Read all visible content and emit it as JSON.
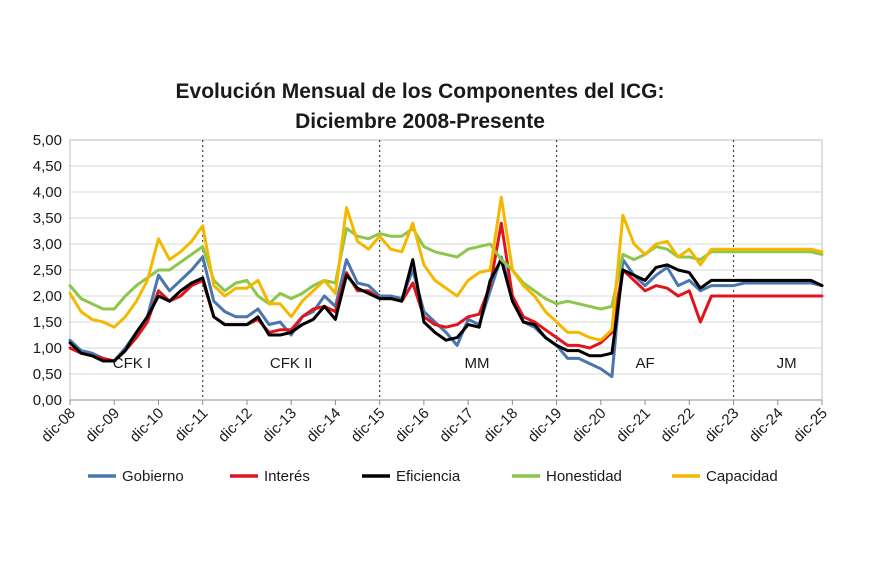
{
  "chart_data": {
    "type": "line",
    "title": "Evolución Mensual de los Componentes del ICG:",
    "subtitle": "Diciembre 2008-Presente",
    "xlabel": "",
    "ylabel": "",
    "ylim": [
      0,
      5
    ],
    "yticks": [
      "0,00",
      "0,50",
      "1,00",
      "1,50",
      "2,00",
      "2,50",
      "3,00",
      "3,50",
      "4,00",
      "4,50",
      "5,00"
    ],
    "categories": [
      "dic-08",
      "dic-09",
      "dic-10",
      "dic-11",
      "dic-12",
      "dic-13",
      "dic-14",
      "dic-15",
      "dic-16",
      "dic-17",
      "dic-18",
      "dic-19",
      "dic-20",
      "dic-21",
      "dic-22",
      "dic-23",
      "dic-24",
      "dic-25"
    ],
    "x_unit": "years since dic-08 (sampled quarterly)",
    "x": [
      0,
      0.25,
      0.5,
      0.75,
      1,
      1.25,
      1.5,
      1.75,
      2,
      2.25,
      2.5,
      2.75,
      3,
      3.25,
      3.5,
      3.75,
      4,
      4.25,
      4.5,
      4.75,
      5,
      5.25,
      5.5,
      5.75,
      6,
      6.25,
      6.5,
      6.75,
      7,
      7.25,
      7.5,
      7.75,
      8,
      8.25,
      8.5,
      8.75,
      9,
      9.25,
      9.5,
      9.75,
      10,
      10.25,
      10.5,
      10.75,
      11,
      11.25,
      11.5,
      11.75,
      12,
      12.25,
      12.5,
      12.75,
      13,
      13.25,
      13.5,
      13.75,
      14,
      14.25,
      14.5,
      14.75,
      15,
      15.25,
      15.5,
      15.75,
      16,
      16.25,
      16.5,
      16.75,
      17
    ],
    "series": [
      {
        "name": "Gobierno",
        "color": "#4a76b0",
        "values": [
          1.15,
          0.95,
          0.9,
          0.8,
          0.75,
          1.0,
          1.3,
          1.6,
          2.4,
          2.1,
          2.3,
          2.5,
          2.75,
          1.9,
          1.7,
          1.6,
          1.6,
          1.75,
          1.45,
          1.5,
          1.25,
          1.6,
          1.7,
          2.0,
          1.8,
          2.7,
          2.25,
          2.2,
          2.0,
          2.0,
          1.95,
          2.5,
          1.7,
          1.5,
          1.3,
          1.05,
          1.55,
          1.45,
          2.1,
          2.75,
          2.0,
          1.5,
          1.4,
          1.2,
          1.05,
          0.8,
          0.8,
          0.7,
          0.6,
          0.45,
          2.7,
          2.4,
          2.2,
          2.4,
          2.55,
          2.2,
          2.3,
          2.1,
          2.2,
          2.2,
          2.2,
          2.25,
          2.25,
          2.25,
          2.25,
          2.25,
          2.25,
          2.25,
          2.2
        ]
      },
      {
        "name": "Interés",
        "color": "#e0141c",
        "values": [
          1.0,
          0.9,
          0.85,
          0.8,
          0.75,
          0.95,
          1.2,
          1.5,
          2.1,
          1.9,
          2.0,
          2.2,
          2.3,
          1.6,
          1.45,
          1.45,
          1.45,
          1.55,
          1.3,
          1.35,
          1.35,
          1.6,
          1.75,
          1.8,
          1.7,
          2.45,
          2.1,
          2.1,
          1.95,
          1.95,
          1.9,
          2.25,
          1.6,
          1.45,
          1.4,
          1.45,
          1.6,
          1.65,
          2.2,
          3.4,
          2.0,
          1.6,
          1.5,
          1.35,
          1.2,
          1.05,
          1.05,
          1.0,
          1.1,
          1.3,
          2.5,
          2.3,
          2.1,
          2.2,
          2.15,
          2.0,
          2.1,
          1.5,
          2.0,
          2.0,
          2.0,
          2.0,
          2.0,
          2.0,
          2.0,
          2.0,
          2.0,
          2.0,
          2.0
        ]
      },
      {
        "name": "Eficiencia",
        "color": "#000000",
        "values": [
          1.1,
          0.9,
          0.85,
          0.75,
          0.75,
          0.95,
          1.3,
          1.6,
          2.0,
          1.9,
          2.1,
          2.25,
          2.35,
          1.6,
          1.45,
          1.45,
          1.45,
          1.6,
          1.25,
          1.25,
          1.3,
          1.45,
          1.55,
          1.8,
          1.55,
          2.4,
          2.15,
          2.05,
          1.95,
          1.95,
          1.9,
          2.7,
          1.5,
          1.3,
          1.15,
          1.2,
          1.45,
          1.4,
          2.3,
          2.7,
          1.9,
          1.5,
          1.45,
          1.2,
          1.05,
          0.95,
          0.95,
          0.85,
          0.85,
          0.9,
          2.5,
          2.4,
          2.3,
          2.55,
          2.6,
          2.5,
          2.45,
          2.15,
          2.3,
          2.3,
          2.3,
          2.3,
          2.3,
          2.3,
          2.3,
          2.3,
          2.3,
          2.3,
          2.2
        ]
      },
      {
        "name": "Honestidad",
        "color": "#8cc64a",
        "values": [
          2.2,
          1.95,
          1.85,
          1.75,
          1.75,
          2.0,
          2.2,
          2.35,
          2.5,
          2.5,
          2.65,
          2.8,
          2.95,
          2.3,
          2.1,
          2.25,
          2.3,
          2.0,
          1.85,
          2.05,
          1.95,
          2.05,
          2.2,
          2.3,
          2.25,
          3.3,
          3.15,
          3.1,
          3.2,
          3.15,
          3.15,
          3.3,
          2.95,
          2.85,
          2.8,
          2.75,
          2.9,
          2.95,
          3.0,
          2.7,
          2.5,
          2.25,
          2.1,
          1.95,
          1.85,
          1.9,
          1.85,
          1.8,
          1.75,
          1.8,
          2.8,
          2.7,
          2.8,
          2.95,
          2.9,
          2.75,
          2.75,
          2.7,
          2.85,
          2.85,
          2.85,
          2.85,
          2.85,
          2.85,
          2.85,
          2.85,
          2.85,
          2.85,
          2.8
        ]
      },
      {
        "name": "Capacidad",
        "color": "#f5b800",
        "values": [
          2.05,
          1.7,
          1.55,
          1.5,
          1.4,
          1.6,
          1.9,
          2.3,
          3.1,
          2.7,
          2.85,
          3.05,
          3.35,
          2.2,
          2.0,
          2.15,
          2.15,
          2.3,
          1.85,
          1.85,
          1.6,
          1.9,
          2.1,
          2.3,
          2.05,
          3.7,
          3.05,
          2.9,
          3.15,
          2.9,
          2.85,
          3.4,
          2.6,
          2.3,
          2.15,
          2.0,
          2.3,
          2.45,
          2.5,
          3.9,
          2.5,
          2.2,
          2.0,
          1.7,
          1.5,
          1.3,
          1.3,
          1.2,
          1.15,
          1.35,
          3.55,
          3.0,
          2.8,
          3.0,
          3.05,
          2.75,
          2.9,
          2.6,
          2.9,
          2.9,
          2.9,
          2.9,
          2.9,
          2.9,
          2.9,
          2.9,
          2.9,
          2.9,
          2.85
        ]
      }
    ],
    "periods": [
      {
        "label": "CFK I",
        "x_center": 1.4
      },
      {
        "label": "CFK II",
        "x_center": 5.0
      },
      {
        "label": "MM",
        "x_center": 9.2
      },
      {
        "label": "AF",
        "x_center": 13.0
      },
      {
        "label": "JM",
        "x_center": 16.2
      }
    ],
    "period_dividers": [
      3,
      7,
      11,
      15
    ],
    "grid": true,
    "legend_position": "bottom"
  }
}
